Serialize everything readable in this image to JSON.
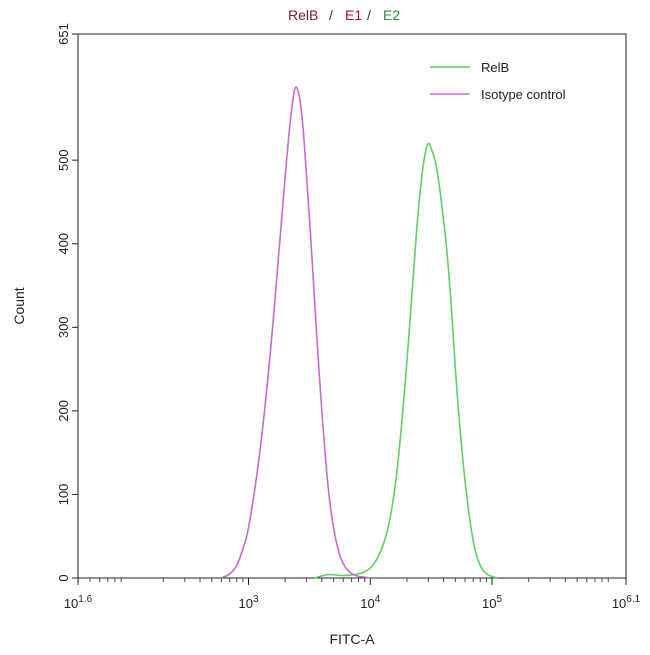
{
  "chart_data": {
    "type": "line",
    "title_parts": [
      {
        "text": "RelB",
        "color": "#6b1f3a"
      },
      {
        "text": "/",
        "color": "#333333"
      },
      {
        "text": "E1",
        "color": "#c0003a"
      },
      {
        "text": "/",
        "color": "#333333"
      },
      {
        "text": "E2",
        "color": "#2e8b3a"
      }
    ],
    "xlabel": "FITC-A",
    "ylabel": "Count",
    "x_scale": "log",
    "xlim": [
      39.81,
      1258925
    ],
    "ylim": [
      0,
      651
    ],
    "x_ticks": [
      {
        "value": 39.81,
        "base": "10",
        "exp": "1.6"
      },
      {
        "value": 1000,
        "base": "10",
        "exp": "3"
      },
      {
        "value": 10000,
        "base": "10",
        "exp": "4"
      },
      {
        "value": 100000,
        "base": "10",
        "exp": "5"
      },
      {
        "value": 1258925,
        "base": "10",
        "exp": "6.1"
      }
    ],
    "y_ticks": [
      0,
      100,
      200,
      300,
      400,
      500,
      651
    ],
    "legend_position": "top-right",
    "series": [
      {
        "name": "RelB",
        "color": "#5ed15e",
        "x": [
          3500,
          4500,
          6000,
          8000,
          10000,
          12000,
          14000,
          16000,
          18000,
          20000,
          22000,
          24000,
          26000,
          28000,
          30000,
          32000,
          34000,
          36000,
          38000,
          42000,
          46000,
          50000,
          56000,
          63000,
          71000,
          80000,
          90000,
          100000,
          110000
        ],
        "y": [
          0,
          4,
          3,
          5,
          12,
          30,
          60,
          110,
          180,
          260,
          340,
          415,
          470,
          505,
          520,
          512,
          500,
          480,
          455,
          400,
          330,
          250,
          160,
          90,
          40,
          15,
          5,
          2,
          0
        ]
      },
      {
        "name": "Isotype control",
        "color": "#c96ad0",
        "x": [
          600,
          700,
          800,
          900,
          1000,
          1200,
          1400,
          1600,
          1800,
          2000,
          2200,
          2400,
          2600,
          2800,
          3000,
          3300,
          3600,
          4000,
          4500,
          5000,
          5600,
          6300,
          7100,
          8000,
          9000,
          10000
        ],
        "y": [
          0,
          5,
          15,
          35,
          60,
          135,
          220,
          310,
          400,
          480,
          545,
          585,
          578,
          540,
          480,
          390,
          300,
          200,
          110,
          60,
          28,
          12,
          5,
          2,
          1,
          0
        ]
      }
    ]
  }
}
